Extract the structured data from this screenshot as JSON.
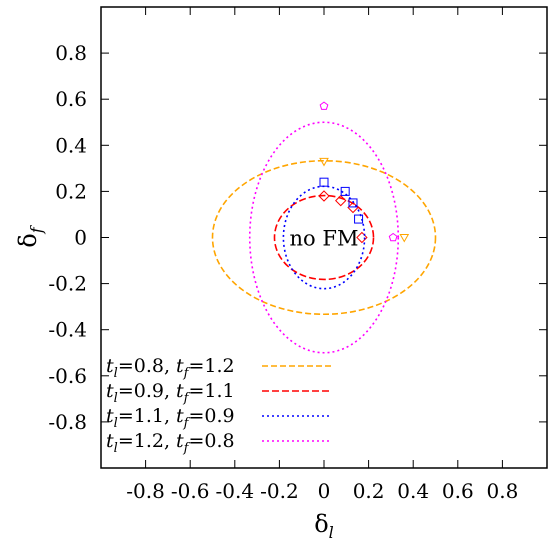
{
  "chart_data": {
    "type": "line",
    "xlabel": "δ_l",
    "ylabel": "δ_f",
    "xlabel_main": "δ",
    "xlabel_sub": "l",
    "ylabel_main": "δ",
    "ylabel_sub": "f",
    "xlim": [
      -1.0,
      1.0
    ],
    "ylim": [
      -1.0,
      1.0
    ],
    "xticks": [
      -0.8,
      -0.6,
      -0.4,
      -0.2,
      0,
      0.2,
      0.4,
      0.6,
      0.8
    ],
    "xtick_labels": [
      "-0.8",
      "-0.6",
      "-0.4",
      "-0.2",
      "0",
      "0.2",
      "0.4",
      "0.6",
      "0.8"
    ],
    "yticks": [
      -0.8,
      -0.6,
      -0.4,
      -0.2,
      0,
      0.2,
      0.4,
      0.6,
      0.8
    ],
    "ytick_labels": [
      "-0.8",
      "-0.6",
      "-0.4",
      "-0.2",
      "0",
      "0.2",
      "0.4",
      "0.6",
      "0.8"
    ],
    "grid": false,
    "legend_position": "bottom-left",
    "annotation": "no FM",
    "annotation_x": 0.0,
    "annotation_y": 0.0,
    "series": [
      {
        "name": "t_l=0.8, t_f=1.2",
        "legend_parts": [
          "t",
          "l",
          "=0.8, ",
          "t",
          "f",
          "=1.2"
        ],
        "color": "#FFA500",
        "dash": "6,3",
        "rx": 0.5,
        "ry": 0.333,
        "markers": [
          {
            "x": 0.0,
            "y": 0.33
          },
          {
            "x": 0.36,
            "y": 0.0
          }
        ],
        "marker_shape": "triangle-down"
      },
      {
        "name": "t_l=0.9, t_f=1.1",
        "legend_parts": [
          "t",
          "l",
          "=0.9, ",
          "t",
          "f",
          "=1.1"
        ],
        "color": "#FF0000",
        "dash": "7,3",
        "rx": 0.222,
        "ry": 0.182,
        "markers": [
          {
            "x": 0.0,
            "y": 0.18
          },
          {
            "x": 0.075,
            "y": 0.16
          },
          {
            "x": 0.13,
            "y": 0.13
          },
          {
            "x": 0.17,
            "y": 0.0
          }
        ],
        "marker_shape": "diamond"
      },
      {
        "name": "t_l=1.1, t_f=0.9",
        "legend_parts": [
          "t",
          "l",
          "=1.1, ",
          "t",
          "f",
          "=0.9"
        ],
        "color": "#0000FF",
        "dash": "2,3",
        "rx": 0.182,
        "ry": 0.222,
        "markers": [
          {
            "x": 0.0,
            "y": 0.24
          },
          {
            "x": 0.095,
            "y": 0.2
          },
          {
            "x": 0.13,
            "y": 0.15
          },
          {
            "x": 0.155,
            "y": 0.08
          }
        ],
        "marker_shape": "square"
      },
      {
        "name": "t_l=1.2, t_f=0.8",
        "legend_parts": [
          "t",
          "l",
          "=1.2, ",
          "t",
          "f",
          "=0.8"
        ],
        "color": "#FF00FF",
        "dash": "2,3",
        "rx": 0.333,
        "ry": 0.5,
        "markers": [
          {
            "x": 0.0,
            "y": 0.57
          },
          {
            "x": 0.31,
            "y": 0.0
          }
        ],
        "marker_shape": "pentagon"
      }
    ]
  }
}
